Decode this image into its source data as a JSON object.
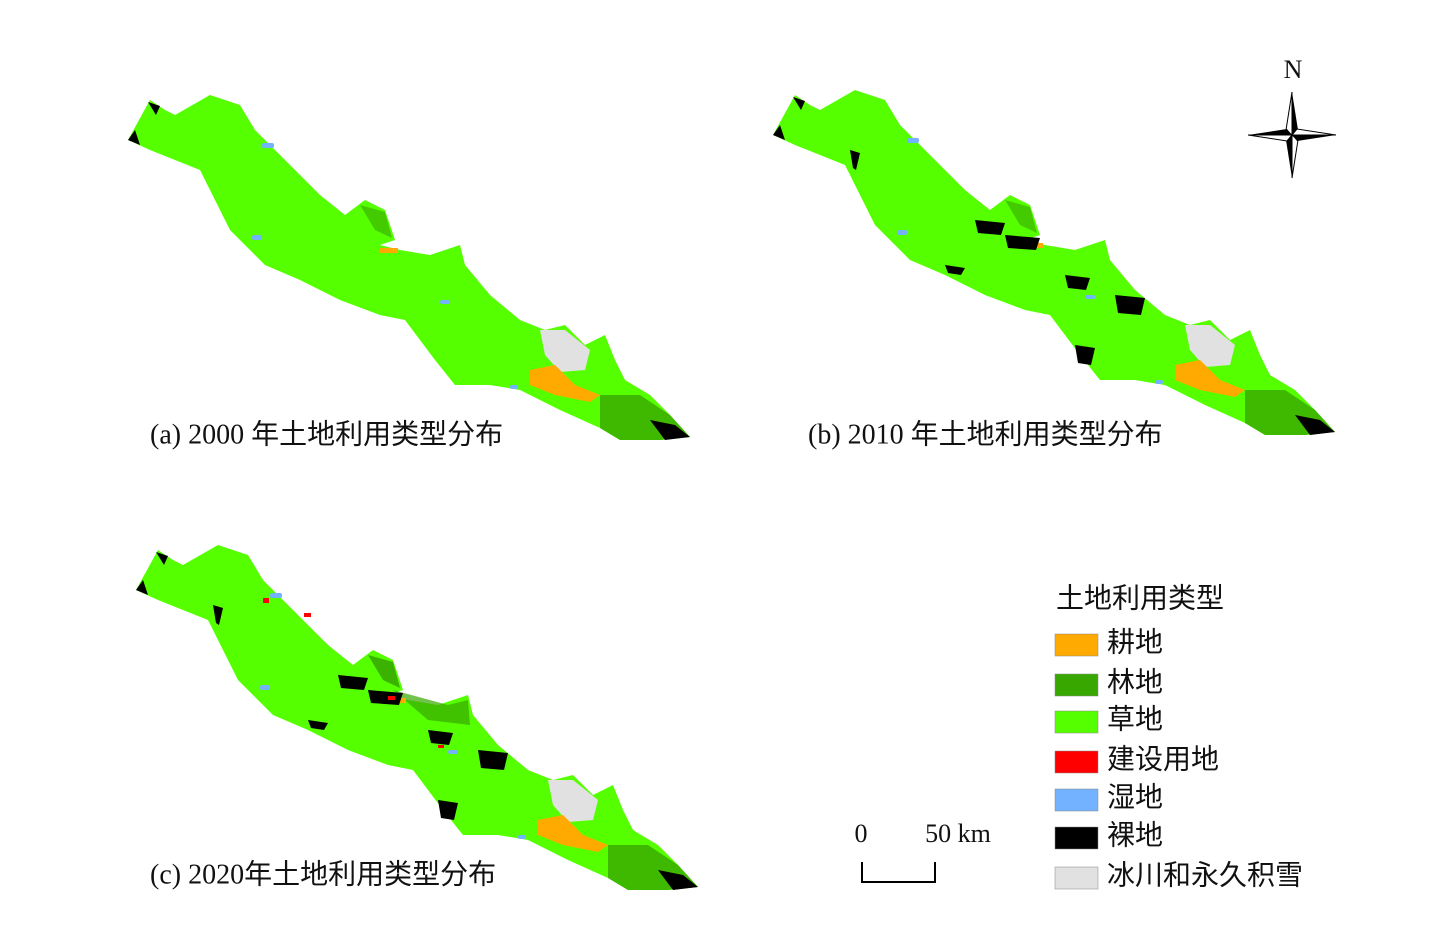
{
  "maps": [
    {
      "caption": "(a) 2000 年土地利用类型分布"
    },
    {
      "caption": "(b) 2010 年土地利用类型分布"
    },
    {
      "caption": "(c)  2020年土地利用类型分布"
    }
  ],
  "legend": {
    "title": "土地利用类型",
    "items": [
      {
        "label": "耕地",
        "color": "#ffaa00"
      },
      {
        "label": "林地",
        "color": "#38a800"
      },
      {
        "label": "草地",
        "color": "#55ff00"
      },
      {
        "label": "建设用地",
        "color": "#ff0000"
      },
      {
        "label": "湿地",
        "color": "#73b2ff"
      },
      {
        "label": "裸地",
        "color": "#000000"
      },
      {
        "label": "冰川和永久积雪",
        "color": "#e1e1e1"
      }
    ]
  },
  "north": "N",
  "scale_bar": {
    "labels": [
      "0",
      "50 km"
    ]
  }
}
